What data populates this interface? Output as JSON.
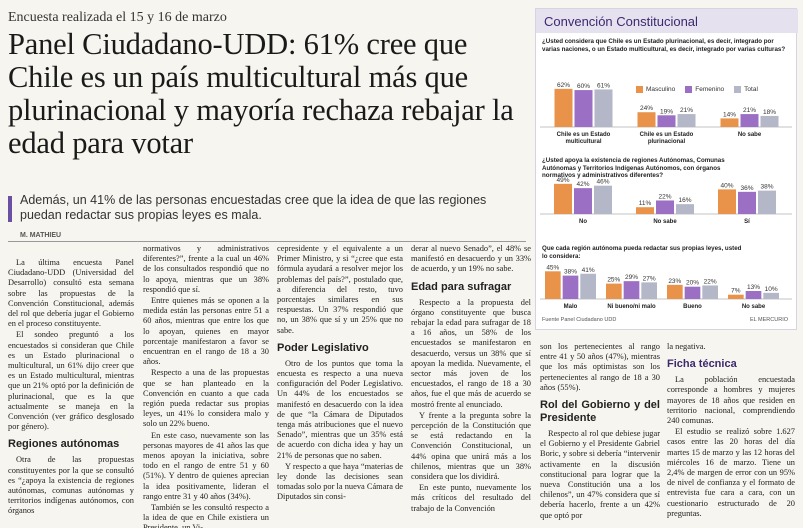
{
  "article": {
    "kicker": "Encuesta realizada el 15 y 16 de marzo",
    "headline": "Panel Ciudadano-UDD: 61% cree que Chile es un país multicultural más que plurinacional y mayoría rechaza rebajar la edad para votar",
    "deck": "Además, un 41% de las personas encuestadas cree que la idea de que las regiones puedan redactar sus propias leyes es mala.",
    "byline": "M. MATHIEU"
  },
  "body": {
    "c1_p1": "La última encuesta Panel Ciudadano-UDD (Universidad del Desarrollo) consultó esta semana sobre las propuestas de la Convención Constitucional, además del rol que debería jugar el Gobierno en el proceso constituyente.",
    "c1_p2": "El sondeo preguntó a los encuestados si consideran que Chile es un Estado plurinacional o multicultural, un 61% dijo creer que es un Estado multicultural, mientras que un 21% optó por la definición de plurinacional, que es la que actualmente se maneja en la Convención (ver gráfico desglosado por género).",
    "c1_h": "Regiones autónomas",
    "c1_p3": "Otra de las propuestas constituyentes por la que se consultó es “¿apoya la existencia de regiones autónomas, comunas autónomas y territorios indígenas autónomos, con órganos",
    "c2_p1": "normativos y administrativos diferentes?”, frente a la cual un 46% de los consultados respondió que no lo apoya, mientras que un 38% respondió que sí.",
    "c2_p2": "Entre quienes más se oponen a la medida están las personas entre 51 a 60 años, mientras que entre los que lo apoyan, quienes en mayor porcentaje manifestaron a favor se encuentran en el rango de 18 a 30 años.",
    "c2_p3": "Respecto a una de las propuestas que se han planteado en la Convención en cuanto a que cada región pueda redactar sus propias leyes, un 41% lo considera malo y solo un 22% bueno.",
    "c2_p4": "En este caso, nuevamente son las personas mayores de 41 años las que menos apoyan la iniciativa, sobre todo en el rango de entre 51 y 60 (51%). Y dentro de quienes aprecian la idea positivamente, lideran el rango entre 31 y 40 años (34%).",
    "c2_p5": "También se les consultó respecto a la idea de que en Chile existiera un Presidente, un Vi-",
    "c3_p1": "cepresidente y el equivalente a un Primer Ministro, y si “¿cree que esta fórmula ayudará a resolver mejor los problemas del país?”, postulado que, a diferencia del resto, tuvo porcentajes similares en sus respuestas. Un 37% respondió que no, un 38% que sí y un 25% que no sabe.",
    "c3_h": "Poder Legislativo",
    "c3_p2": "Otro de los puntos que toma la encuesta es respecto a una nueva configuración del Poder Legislativo. Un 44% de los encuestados se manifestó en desacuerdo con la idea de que “la Cámara de Diputados tenga más atribuciones que el nuevo Senado”, mientras que un 35% está de acuerdo con dicha idea y hay un 21% de personas que no saben.",
    "c3_p3": "Y respecto a que haya “materias de ley donde las decisiones sean tomadas solo por la nueva Cámara de Diputados sin consi-",
    "c4_p1": "derar al nuevo Senado”, el 48% se manifestó en desacuerdo y un 33% de acuerdo, y un 19% no sabe.",
    "c4_h": "Edad para sufragar",
    "c4_p2": "Respecto a la propuesta del órgano constituyente que busca rebajar la edad para sufragar de 18 a 16 años, un 58% de los encuestados se manifestaron en desacuerdo, versus un 38% que sí apoyan la medida. Nuevamente, el sector más joven de los encuestados, el rango de 18 a 30 años, fue el que más de acuerdo se mostró frente al enunciado.",
    "c4_p3": "Y frente a la pregunta sobre la percepción de la Constitución que se está redactando en la Convención Constitucional, un 44% opina que unirá más a los chilenos, mientras que un 38% considera que los dividirá.",
    "c4_p4": "En este punto, nuevamente los más críticos del resultado del trabajo de la Convención",
    "c5_p1": "son los pertenecientes al rango entre 41 y 50 años (47%), mientras que los más optimistas son los pertenecientes al rango de 18 a 30 años (55%).",
    "c5_h": "Rol del Gobierno y del Presidente",
    "c5_p2": "Respecto al rol que debiese jugar el Gobierno y el Presidente Gabriel Boric, y sobre si debería “intervenir activamente en la discusión constitucional para lograr que la nueva Constitución una a los chilenos”, un 47% considera que sí debería hacerlo, frente a un 42% que optó por",
    "c6_p1": "la negativa.",
    "c6_h": "Ficha técnica",
    "c6_p2": "La población encuestada corresponde a hombres y mujeres mayores de 18 años que residen en territorio nacional, comprendiendo 240 comunas.",
    "c6_p3": "El estudio se realizó sobre 1.627 casos entre las 20 horas del día martes 15 de marzo y las 12 horas del miércoles 16 de marzo. Tiene un 2,4% de margen de error con un 95% de nivel de confianza y el formato de entrevista fue cara a cara, con un cuestionario estructurado de 20 preguntas."
  },
  "panel": {
    "title": "Convención Constitucional",
    "q1": "¿Usted considera que Chile es un Estado plurinacional, es decir, integrado por varias naciones, o un Estado multicultural, es decir, integrado por varias culturas?",
    "q2": "¿Usted apoya la existencia de regiones Autónomas, Comunas Autónomas y Territorios Indígenas Autónomos, con órganos normativos y administrativos diferentes?",
    "q3": "Que cada región autónoma pueda redactar sus propias leyes, usted lo considera:",
    "legend": [
      "Masculino",
      "Femenino",
      "Total"
    ],
    "colors": {
      "masculino": "#e8924a",
      "femenino": "#9b6fc4",
      "total": "#b3b7c8"
    },
    "source": "Fuente  Panel Ciudadano UDD",
    "credit": "EL MERCURIO"
  },
  "chart_data": [
    {
      "type": "bar",
      "title": "¿Usted considera que Chile es un Estado plurinacional, es decir, integrado por varias naciones, o un Estado multicultural, es decir, integrado por varias culturas?",
      "categories": [
        "Chile es un Estado multicultural",
        "Chile es un Estado plurinacional",
        "No sabe"
      ],
      "series": [
        {
          "name": "Masculino",
          "values": [
            62,
            24,
            14
          ]
        },
        {
          "name": "Femenino",
          "values": [
            60,
            19,
            21
          ]
        },
        {
          "name": "Total",
          "values": [
            61,
            21,
            18
          ]
        }
      ]
    },
    {
      "type": "bar",
      "title": "¿Usted apoya la existencia de regiones Autónomas, Comunas Autónomas y Territorios Indígenas Autónomos, con órganos normativos y administrativos diferentes?",
      "categories": [
        "No",
        "No sabe",
        "Sí"
      ],
      "series": [
        {
          "name": "Masculino",
          "values": [
            49,
            11,
            40
          ]
        },
        {
          "name": "Femenino",
          "values": [
            42,
            22,
            36
          ]
        },
        {
          "name": "Total",
          "values": [
            46,
            16,
            38
          ]
        }
      ]
    },
    {
      "type": "bar",
      "title": "Que cada región autónoma pueda redactar sus propias leyes, usted lo considera:",
      "categories": [
        "Malo",
        "Ni bueno/ni malo",
        "Bueno",
        "No sabe"
      ],
      "series": [
        {
          "name": "Masculino",
          "values": [
            45,
            25,
            23,
            7
          ]
        },
        {
          "name": "Femenino",
          "values": [
            38,
            29,
            20,
            13
          ]
        },
        {
          "name": "Total",
          "values": [
            41,
            27,
            22,
            10
          ]
        }
      ]
    }
  ]
}
